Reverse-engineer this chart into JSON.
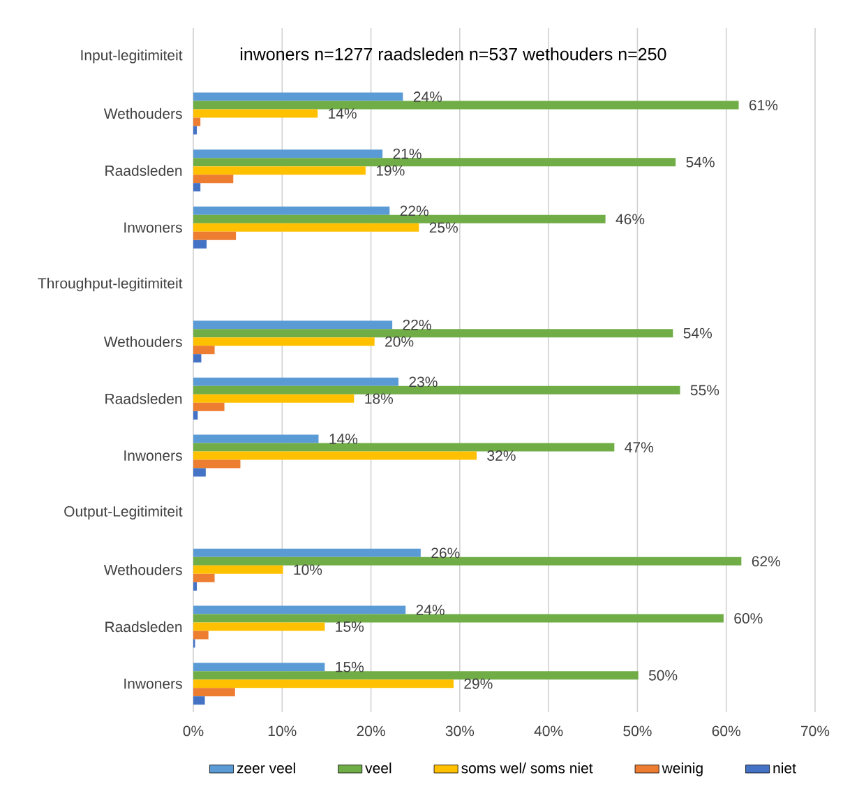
{
  "chart_data": {
    "type": "bar",
    "orientation": "horizontal",
    "categories": [
      "Input-legitimiteit",
      "Wethouders",
      "Raadsleden",
      "Inwoners",
      "Throughput-legitimiteit",
      "Wethouders",
      "Raadsleden",
      "Inwoners",
      "Output-Legitimiteit",
      "Wethouders",
      "Raadsleden",
      "Inwoners"
    ],
    "series": [
      {
        "name": "zeer veel",
        "color": "#5b9bd5",
        "values": [
          null,
          23.6,
          21.3,
          22.1,
          null,
          22.4,
          23.1,
          14.1,
          null,
          25.6,
          23.9,
          14.8
        ],
        "value_labels": [
          null,
          "24%",
          "21%",
          "22%",
          null,
          "22%",
          "23%",
          "14%",
          null,
          "26%",
          "24%",
          "15%"
        ]
      },
      {
        "name": "veel",
        "color": "#70ad47",
        "values": [
          null,
          61.4,
          54.3,
          46.4,
          null,
          54.0,
          54.8,
          47.4,
          null,
          61.7,
          59.7,
          50.1
        ],
        "value_labels": [
          null,
          "61%",
          "54%",
          "46%",
          null,
          "54%",
          "55%",
          "47%",
          null,
          "62%",
          "60%",
          "50%"
        ]
      },
      {
        "name": "soms wel/ soms niet",
        "color": "#ffc000",
        "values": [
          null,
          14.0,
          19.4,
          25.4,
          null,
          20.4,
          18.1,
          31.9,
          null,
          10.1,
          14.8,
          29.3
        ],
        "value_labels": [
          null,
          "14%",
          "19%",
          "25%",
          null,
          "20%",
          "18%",
          "32%",
          null,
          "10%",
          "15%",
          "29%"
        ]
      },
      {
        "name": "weinig",
        "color": "#ed7d31",
        "values": [
          null,
          0.8,
          4.5,
          4.8,
          null,
          2.4,
          3.5,
          5.3,
          null,
          2.4,
          1.7,
          4.7
        ]
      },
      {
        "name": "niet",
        "color": "#4472c4",
        "values": [
          null,
          0.4,
          0.8,
          1.5,
          null,
          0.9,
          0.5,
          1.4,
          null,
          0.4,
          0.2,
          1.3
        ]
      }
    ],
    "xlim": [
      0,
      70
    ],
    "xticks": [
      {
        "value": 0,
        "label": "0%"
      },
      {
        "value": 10,
        "label": "10%"
      },
      {
        "value": 20,
        "label": "20%"
      },
      {
        "value": 30,
        "label": "30%"
      },
      {
        "value": 40,
        "label": "40%"
      },
      {
        "value": 50,
        "label": "50%"
      },
      {
        "value": 60,
        "label": "60%"
      },
      {
        "value": 70,
        "label": "70%"
      }
    ],
    "grid": "x",
    "legend": "bottom",
    "annotations": [
      "inwoners n=1277 raadsleden n=537 wethouders n=250"
    ]
  }
}
